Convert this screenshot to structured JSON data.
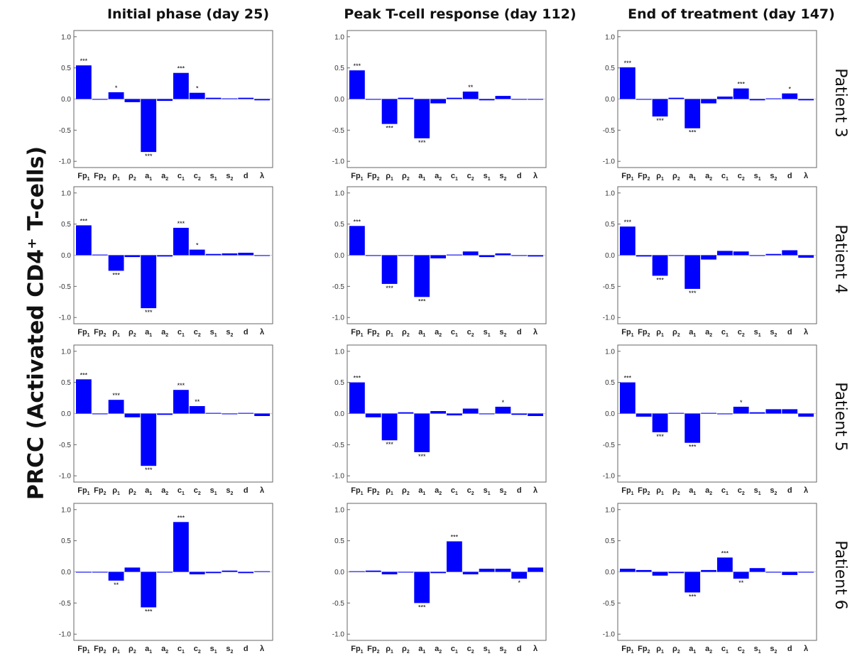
{
  "figure": {
    "ylabel": "PRCC (Activated CD4⁺ T-cells)",
    "columns": [
      "Initial phase (day 25)",
      "Peak T-cell response (day 112)",
      "End of treatment (day 147)"
    ],
    "rows": [
      "Patient 3",
      "Patient 4",
      "Patient 5",
      "Patient 6"
    ],
    "bar_color": "#0000FF"
  },
  "chart_data": {
    "type": "bar",
    "categories": [
      {
        "base": "Fp",
        "sub": "1"
      },
      {
        "base": "Fp",
        "sub": "2"
      },
      {
        "base": "ρ",
        "sub": "1"
      },
      {
        "base": "ρ",
        "sub": "2"
      },
      {
        "base": "a",
        "sub": "1"
      },
      {
        "base": "a",
        "sub": "2"
      },
      {
        "base": "c",
        "sub": "1"
      },
      {
        "base": "c",
        "sub": "2"
      },
      {
        "base": "s",
        "sub": "1"
      },
      {
        "base": "s",
        "sub": "2"
      },
      {
        "base": "d",
        "sub": ""
      },
      {
        "base": "λ",
        "sub": ""
      }
    ],
    "ylim": [
      -1.1,
      1.1
    ],
    "yticks": [
      "1.0",
      "0.5",
      "0.0",
      "-0.5",
      "-1.0"
    ],
    "panels": [
      {
        "row": 0,
        "col": 0,
        "values": [
          0.54,
          0.0,
          0.11,
          -0.05,
          -0.85,
          -0.03,
          0.42,
          0.1,
          0.02,
          0.01,
          0.02,
          -0.02
        ],
        "stars": [
          "***",
          "",
          "*",
          "",
          "***",
          "",
          "***",
          "*",
          "",
          "",
          "",
          ""
        ]
      },
      {
        "row": 0,
        "col": 1,
        "values": [
          0.46,
          -0.01,
          -0.4,
          0.02,
          -0.63,
          -0.07,
          0.02,
          0.12,
          -0.02,
          0.05,
          -0.01,
          0.0
        ],
        "stars": [
          "***",
          "",
          "***",
          "",
          "***",
          "",
          "",
          "**",
          "",
          "",
          "",
          ""
        ]
      },
      {
        "row": 0,
        "col": 2,
        "values": [
          0.51,
          0.0,
          -0.28,
          0.02,
          -0.47,
          -0.07,
          0.04,
          0.17,
          -0.02,
          0.01,
          0.09,
          -0.02
        ],
        "stars": [
          "***",
          "",
          "***",
          "",
          "***",
          "",
          "",
          "***",
          "",
          "",
          "*",
          ""
        ]
      },
      {
        "row": 1,
        "col": 0,
        "values": [
          0.48,
          0.01,
          -0.25,
          -0.03,
          -0.85,
          -0.02,
          0.44,
          0.09,
          0.02,
          0.03,
          0.04,
          0.0
        ],
        "stars": [
          "***",
          "",
          "***",
          "",
          "***",
          "",
          "***",
          "*",
          "",
          "",
          "",
          ""
        ]
      },
      {
        "row": 1,
        "col": 1,
        "values": [
          0.47,
          -0.01,
          -0.46,
          -0.01,
          -0.67,
          -0.05,
          0.01,
          0.06,
          -0.03,
          0.03,
          -0.01,
          -0.02
        ],
        "stars": [
          "***",
          "",
          "***",
          "",
          "***",
          "",
          "",
          "",
          "",
          "",
          "",
          ""
        ]
      },
      {
        "row": 1,
        "col": 2,
        "values": [
          0.46,
          -0.02,
          -0.33,
          -0.01,
          -0.54,
          -0.07,
          0.07,
          0.06,
          -0.01,
          0.02,
          0.08,
          -0.04
        ],
        "stars": [
          "***",
          "",
          "***",
          "",
          "***",
          "",
          "",
          "",
          "",
          "",
          "",
          ""
        ]
      },
      {
        "row": 2,
        "col": 0,
        "values": [
          0.55,
          0.0,
          0.22,
          -0.06,
          -0.84,
          -0.02,
          0.38,
          0.12,
          0.01,
          0.0,
          0.01,
          -0.04
        ],
        "stars": [
          "***",
          "",
          "***",
          "",
          "***",
          "",
          "***",
          "**",
          "",
          "",
          "",
          ""
        ]
      },
      {
        "row": 2,
        "col": 1,
        "values": [
          0.5,
          -0.06,
          -0.43,
          0.02,
          -0.62,
          0.04,
          -0.03,
          0.08,
          -0.01,
          0.11,
          -0.02,
          -0.04
        ],
        "stars": [
          "***",
          "",
          "***",
          "",
          "***",
          "",
          "",
          "",
          "",
          "*",
          "",
          ""
        ]
      },
      {
        "row": 2,
        "col": 2,
        "values": [
          0.5,
          -0.05,
          -0.3,
          0.01,
          -0.47,
          0.01,
          0.0,
          0.11,
          0.02,
          0.07,
          0.07,
          -0.05
        ],
        "stars": [
          "***",
          "",
          "***",
          "",
          "***",
          "",
          "",
          "*",
          "",
          "",
          "",
          ""
        ]
      },
      {
        "row": 3,
        "col": 0,
        "values": [
          0.0,
          -0.01,
          -0.14,
          0.07,
          -0.57,
          0.0,
          0.8,
          -0.04,
          -0.02,
          0.02,
          -0.02,
          0.01
        ],
        "stars": [
          "",
          "",
          "**",
          "",
          "***",
          "",
          "***",
          "",
          "",
          "",
          "",
          ""
        ]
      },
      {
        "row": 3,
        "col": 1,
        "values": [
          0.01,
          0.02,
          -0.04,
          -0.01,
          -0.5,
          -0.02,
          0.49,
          -0.04,
          0.05,
          0.05,
          -0.11,
          0.07
        ],
        "stars": [
          "",
          "",
          "",
          "",
          "***",
          "",
          "***",
          "",
          "",
          "",
          "*",
          ""
        ]
      },
      {
        "row": 3,
        "col": 2,
        "values": [
          0.05,
          0.03,
          -0.06,
          -0.02,
          -0.33,
          0.03,
          0.23,
          -0.11,
          0.06,
          -0.01,
          -0.05,
          0.0
        ],
        "stars": [
          "",
          "",
          "",
          "",
          "***",
          "",
          "***",
          "**",
          "",
          "",
          "",
          ""
        ]
      }
    ]
  }
}
